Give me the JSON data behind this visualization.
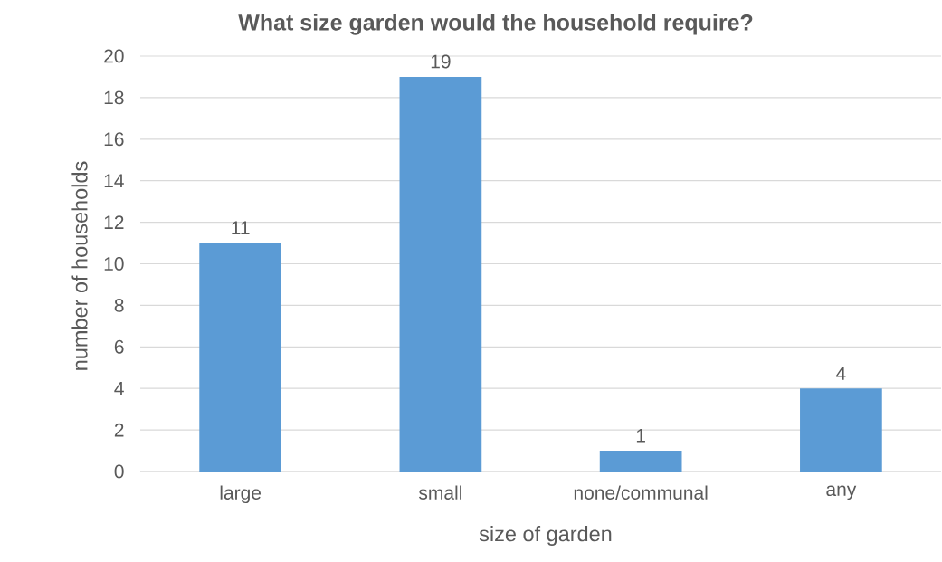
{
  "chart_data": {
    "type": "bar",
    "title": "What size garden would the household require?",
    "xlabel": "size of garden",
    "ylabel": "number of households",
    "categories": [
      "large",
      "small",
      "none/communal",
      "any"
    ],
    "values": [
      11,
      19,
      1,
      4
    ],
    "color": "#5b9bd5",
    "ylim": [
      0,
      20
    ],
    "yticks": [
      0,
      2,
      4,
      6,
      8,
      10,
      12,
      14,
      16,
      18,
      20
    ],
    "grid": "y",
    "data_labels": true
  }
}
